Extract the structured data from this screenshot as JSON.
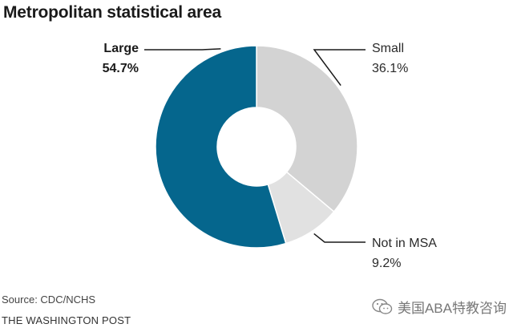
{
  "chart_data": {
    "type": "pie",
    "title": "Metropolitan statistical area",
    "categories": [
      "Large",
      "Small",
      "Not in MSA"
    ],
    "values": [
      54.7,
      36.1,
      9.2
    ],
    "value_labels": [
      "54.7%",
      "36.1%",
      "9.2%"
    ],
    "colors": [
      "#05668d",
      "#d3d3d3",
      "#e1e1e1"
    ],
    "donut": true
  },
  "footer": {
    "source": "Source: CDC/NCHS",
    "publisher": "THE WASHINGTON POST"
  },
  "watermark": {
    "text": "美国ABA特教咨询",
    "icon": "wechat-icon"
  }
}
